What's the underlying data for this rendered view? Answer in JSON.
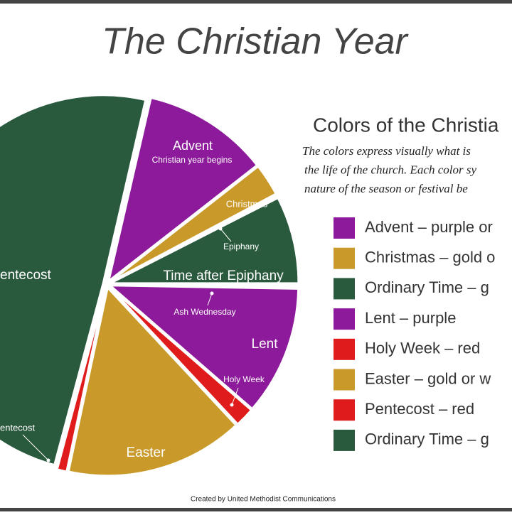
{
  "chart_data": {
    "type": "pie",
    "title": "The Christian Year",
    "categories": [
      "Advent",
      "Christmas",
      "Epiphany",
      "Time after Epiphany",
      "Ash Wednesday",
      "Lent",
      "Holy Week",
      "Easter",
      "entecost",
      "entecost"
    ],
    "values": [
      39,
      10,
      1,
      27,
      1,
      40,
      6,
      55,
      3,
      178
    ],
    "colors": [
      "#8c1a9a",
      "#c99a2a",
      "#ffffff",
      "#2a5a3e",
      "#ffffff",
      "#8c1a9a",
      "#e01b1b",
      "#c99a2a",
      "#e01b1b",
      "#2a5a3e"
    ],
    "annotation": "Christian year begins"
  },
  "legend": {
    "heading": "Colors of the Christia",
    "description": [
      "The colors express visually what is",
      "the life of the church. Each color sy",
      "nature of the season or festival be"
    ],
    "items": [
      {
        "label": "Advent – purple or",
        "color": "#8c1a9a"
      },
      {
        "label": "Christmas – gold o",
        "color": "#c99a2a"
      },
      {
        "label": "Ordinary Time – g",
        "color": "#2a5a3e"
      },
      {
        "label": "Lent – purple",
        "color": "#8c1a9a"
      },
      {
        "label": "Holy Week – red",
        "color": "#e01b1b"
      },
      {
        "label": "Easter – gold or w",
        "color": "#c99a2a"
      },
      {
        "label": "Pentecost – red",
        "color": "#e01b1b"
      },
      {
        "label": "Ordinary Time – g",
        "color": "#2a5a3e"
      }
    ]
  },
  "credit": "Created by United Methodist Communications"
}
